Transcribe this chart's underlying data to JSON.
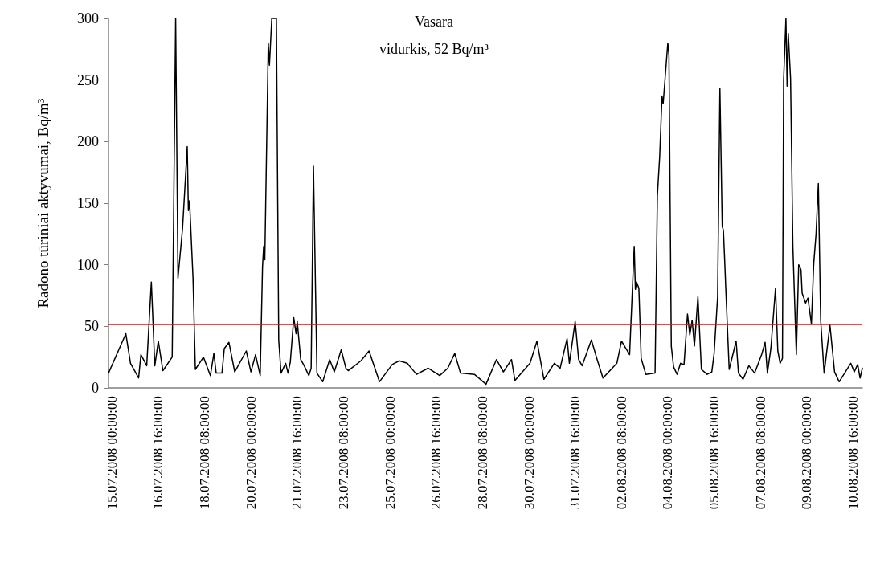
{
  "chart_data": {
    "type": "line",
    "ylabel": "Radono tūriniai aktyvumai, Bq/m³",
    "annotations": [
      "Vasara",
      "vidurkis, 52 Bq/m³"
    ],
    "x": [
      "2008-07-14T21:00",
      "2008-07-15T12:00",
      "2008-07-15T16:00",
      "2008-07-15T23:00",
      "2008-07-16T01:00",
      "2008-07-16T06:00",
      "2008-07-16T10:00",
      "2008-07-16T13:00",
      "2008-07-16T16:00",
      "2008-07-16T20:00",
      "2008-07-17T04:00",
      "2008-07-17T07:00",
      "2008-07-17T09:00",
      "2008-07-17T13:00",
      "2008-07-17T17:00",
      "2008-07-17T18:00",
      "2008-07-17T19:00",
      "2008-07-17T22:00",
      "2008-07-18T00:00",
      "2008-07-18T07:00",
      "2008-07-18T13:00",
      "2008-07-18T16:00",
      "2008-07-18T18:00",
      "2008-07-18T23:00",
      "2008-07-19T01:00",
      "2008-07-19T05:00",
      "2008-07-19T10:00",
      "2008-07-19T20:00",
      "2008-07-20T00:00",
      "2008-07-20T04:00",
      "2008-07-20T08:00",
      "2008-07-20T10:00",
      "2008-07-20T11:00",
      "2008-07-20T12:00",
      "2008-07-20T15:00",
      "2008-07-20T16:00",
      "2008-07-20T18:00",
      "2008-07-20T22:00",
      "2008-07-21T00:00",
      "2008-07-21T02:00",
      "2008-07-21T06:00",
      "2008-07-21T08:00",
      "2008-07-21T10:00",
      "2008-07-21T13:00",
      "2008-07-21T15:00",
      "2008-07-21T16:00",
      "2008-07-21T19:00",
      "2008-07-21T22:00",
      "2008-07-22T02:00",
      "2008-07-22T04:00",
      "2008-07-22T06:00",
      "2008-07-22T09:00",
      "2008-07-22T14:00",
      "2008-07-22T20:00",
      "2008-07-23T00:00",
      "2008-07-23T06:00",
      "2008-07-23T10:00",
      "2008-07-23T12:00",
      "2008-07-23T23:00",
      "2008-07-24T06:00",
      "2008-07-24T15:00",
      "2008-07-25T02:00",
      "2008-07-25T08:00",
      "2008-07-25T15:00",
      "2008-07-25T23:00",
      "2008-07-26T09:00",
      "2008-07-26T19:00",
      "2008-07-27T02:00",
      "2008-07-27T08:00",
      "2008-07-27T13:00",
      "2008-07-28T01:00",
      "2008-07-28T11:00",
      "2008-07-28T20:00",
      "2008-07-29T02:00",
      "2008-07-29T09:00",
      "2008-07-29T12:00",
      "2008-07-30T01:00",
      "2008-07-30T07:00",
      "2008-07-30T13:00",
      "2008-07-30T22:00",
      "2008-07-31T03:00",
      "2008-07-31T09:00",
      "2008-07-31T11:00",
      "2008-07-31T16:00",
      "2008-07-31T19:00",
      "2008-07-31T22:00",
      "2008-08-01T06:00",
      "2008-08-01T11:00",
      "2008-08-01T16:00",
      "2008-08-02T04:00",
      "2008-08-02T08:00",
      "2008-08-02T15:00",
      "2008-08-02T19:00",
      "2008-08-02T20:00",
      "2008-08-02T21:00",
      "2008-08-02T23:00",
      "2008-08-03T01:00",
      "2008-08-03T05:00",
      "2008-08-03T13:00",
      "2008-08-03T15:00",
      "2008-08-03T17:00",
      "2008-08-03T19:00",
      "2008-08-03T20:00",
      "2008-08-04T00:00",
      "2008-08-04T01:00",
      "2008-08-04T03:00",
      "2008-08-04T05:00",
      "2008-08-04T08:00",
      "2008-08-04T11:00",
      "2008-08-04T14:00",
      "2008-08-04T17:00",
      "2008-08-04T19:00",
      "2008-08-04T21:00",
      "2008-08-04T23:00",
      "2008-08-05T02:00",
      "2008-08-05T05:00",
      "2008-08-05T10:00",
      "2008-08-05T14:00",
      "2008-08-05T16:00",
      "2008-08-05T19:00",
      "2008-08-05T21:00",
      "2008-08-05T23:00",
      "2008-08-06T00:00",
      "2008-08-06T01:00",
      "2008-08-06T02:00",
      "2008-08-06T05:00",
      "2008-08-06T11:00",
      "2008-08-06T13:00",
      "2008-08-06T17:00",
      "2008-08-06T22:00",
      "2008-08-07T03:00",
      "2008-08-07T09:00",
      "2008-08-07T12:00",
      "2008-08-07T14:00",
      "2008-08-07T17:00",
      "2008-08-07T21:00",
      "2008-08-07T23:00",
      "2008-08-08T01:00",
      "2008-08-08T03:00",
      "2008-08-08T04:00",
      "2008-08-08T06:00",
      "2008-08-08T07:00",
      "2008-08-08T08:00",
      "2008-08-08T10:00",
      "2008-08-08T12:00",
      "2008-08-08T15:00",
      "2008-08-08T17:00",
      "2008-08-08T19:00",
      "2008-08-08T20:00",
      "2008-08-08T23:00",
      "2008-08-09T01:00",
      "2008-08-09T04:00",
      "2008-08-09T06:00",
      "2008-08-09T08:00",
      "2008-08-09T10:00",
      "2008-08-09T12:00",
      "2008-08-09T15:00",
      "2008-08-09T20:00",
      "2008-08-10T00:00",
      "2008-08-10T04:00",
      "2008-08-10T10:00",
      "2008-08-10T14:00",
      "2008-08-10T17:00",
      "2008-08-10T20:00",
      "2008-08-10T22:00",
      "2008-08-11T00:00"
    ],
    "series": [
      {
        "color": "#000000",
        "values": [
          12,
          44,
          20,
          8,
          27,
          18,
          86,
          18,
          38,
          14,
          25,
          300,
          89,
          130,
          196,
          144,
          152,
          89,
          15,
          25,
          10,
          28,
          12,
          12,
          32,
          37,
          13,
          30,
          13,
          27,
          10,
          98,
          115,
          104,
          280,
          262,
          300,
          300,
          39,
          12,
          20,
          12,
          21,
          57,
          44,
          54,
          23,
          18,
          10,
          16,
          180,
          12,
          5,
          23,
          13,
          31,
          16,
          14,
          22,
          30,
          5,
          19,
          22,
          20,
          11,
          16,
          10,
          16,
          28,
          12,
          11,
          3,
          23,
          13,
          23,
          6,
          20,
          38,
          7,
          20,
          16,
          40,
          20,
          54,
          23,
          18,
          39,
          23,
          8,
          20,
          38,
          27,
          115,
          80,
          86,
          81,
          24,
          11,
          12,
          156,
          188,
          237,
          231,
          280,
          270,
          34,
          17,
          11,
          20,
          19,
          60,
          43,
          55,
          34,
          74,
          15,
          11,
          13,
          28,
          74,
          243,
          131,
          128,
          106,
          82,
          15,
          38,
          12,
          7,
          18,
          12,
          27,
          37,
          12,
          32,
          81,
          30,
          20,
          24,
          250,
          300,
          245,
          288,
          251,
          115,
          27,
          100,
          96,
          77,
          69,
          73,
          52,
          101,
          125,
          166,
          55,
          12,
          51,
          13,
          5,
          14,
          20,
          13,
          19,
          8,
          16
        ]
      }
    ],
    "xlim": [
      "2008-07-14T21:00",
      "2008-08-11T00:00"
    ],
    "xticks": [
      {
        "value": "2008-07-15T00:00",
        "label": "15.07.2008 00:00:00"
      },
      {
        "value": "2008-07-16T16:00",
        "label": "16.07.2008 16:00:00"
      },
      {
        "value": "2008-07-18T08:00",
        "label": "18.07.2008 08:00:00"
      },
      {
        "value": "2008-07-20T00:00",
        "label": "20.07.2008 00:00:00"
      },
      {
        "value": "2008-07-21T16:00",
        "label": "21.07.2008 16:00:00"
      },
      {
        "value": "2008-07-23T08:00",
        "label": "23.07.2008 08:00:00"
      },
      {
        "value": "2008-07-25T00:00",
        "label": "25.07.2008 00:00:00"
      },
      {
        "value": "2008-07-26T16:00",
        "label": "26.07.2008 16:00:00"
      },
      {
        "value": "2008-07-28T08:00",
        "label": "28.07.2008 08:00:00"
      },
      {
        "value": "2008-07-30T00:00",
        "label": "30.07.2008 00:00:00"
      },
      {
        "value": "2008-07-31T16:00",
        "label": "31.07.2008 16:00:00"
      },
      {
        "value": "2008-08-02T08:00",
        "label": "02.08.2008 08:00:00"
      },
      {
        "value": "2008-08-04T00:00",
        "label": "04.08.2008 00:00:00"
      },
      {
        "value": "2008-08-05T16:00",
        "label": "05.08.2008 16:00:00"
      },
      {
        "value": "2008-08-07T08:00",
        "label": "07.08.2008 08:00:00"
      },
      {
        "value": "2008-08-09T00:00",
        "label": "09.08.2008 00:00:00"
      },
      {
        "value": "2008-08-10T16:00",
        "label": "10.08.2008 16:00:00"
      }
    ],
    "ylim": [
      0,
      300
    ],
    "yticks": [
      0,
      50,
      100,
      150,
      200,
      250,
      300
    ],
    "ref_lines": [
      {
        "axis": "y",
        "value": 52,
        "color": "#ff0000"
      }
    ],
    "grid": false,
    "marker": "none",
    "line_style": "solid"
  }
}
